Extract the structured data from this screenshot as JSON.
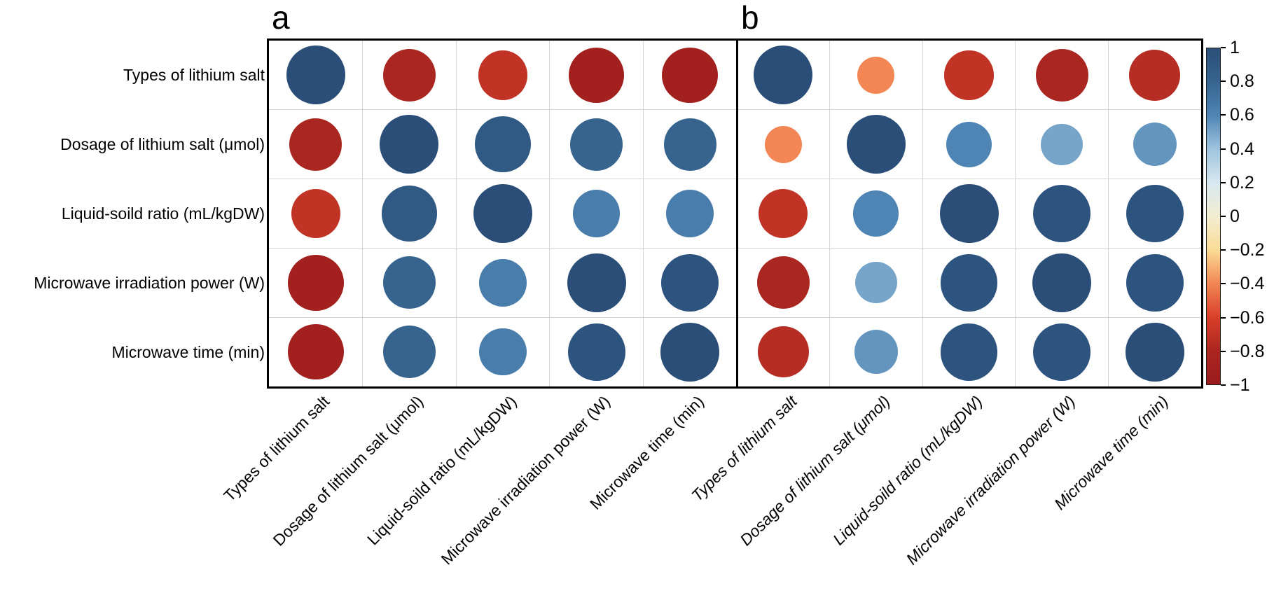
{
  "chart_data": {
    "type": "correlation_matrix_bubble",
    "title": "",
    "variables": [
      "Types of lithium salt",
      "Dosage of lithium salt (μmol)",
      "Liquid-soild ratio (mL/kgDW)",
      "Microwave irradiation power (W)",
      "Microwave time (min)"
    ],
    "panels": [
      {
        "label": "a",
        "matrix": [
          [
            1.0,
            -0.8,
            -0.7,
            -0.9,
            -0.9
          ],
          [
            -0.8,
            1.0,
            0.9,
            0.8,
            0.8
          ],
          [
            -0.7,
            0.9,
            1.0,
            0.65,
            0.65
          ],
          [
            -0.9,
            0.8,
            0.65,
            1.0,
            0.95
          ],
          [
            -0.9,
            0.8,
            0.65,
            0.95,
            1.0
          ]
        ]
      },
      {
        "label": "b",
        "matrix": [
          [
            1.0,
            -0.4,
            -0.7,
            -0.8,
            -0.75
          ],
          [
            -0.4,
            1.0,
            0.6,
            0.5,
            0.55
          ],
          [
            -0.7,
            0.6,
            1.0,
            0.95,
            0.95
          ],
          [
            -0.8,
            0.5,
            0.95,
            1.0,
            0.95
          ],
          [
            -0.75,
            0.55,
            0.95,
            0.95,
            1.0
          ]
        ]
      }
    ],
    "colorbar": {
      "position": "right",
      "range": [
        -1,
        1
      ],
      "ticks": [
        1,
        0.8,
        0.6,
        0.4,
        0.2,
        0,
        -0.2,
        -0.4,
        -0.6,
        -0.8,
        -1
      ],
      "tick_labels": [
        "1",
        "0.8",
        "0.6",
        "0.4",
        "0.2",
        "0",
        "−0.2",
        "−0.4",
        "−0.6",
        "−0.8",
        "−1"
      ]
    },
    "colormap_stops": [
      [
        -1.0,
        "#9A1B1E"
      ],
      [
        -0.8,
        "#AA2620"
      ],
      [
        -0.6,
        "#D8402A"
      ],
      [
        -0.4,
        "#F28654"
      ],
      [
        -0.2,
        "#FBDC96"
      ],
      [
        0.0,
        "#F2EDD2"
      ],
      [
        0.2,
        "#D8E8F0"
      ],
      [
        0.4,
        "#9FC4DE"
      ],
      [
        0.6,
        "#4F85B5"
      ],
      [
        0.8,
        "#36648F"
      ],
      [
        1.0,
        "#2A4E78"
      ]
    ],
    "size_encoding": "radius proportional to sqrt(|r|)",
    "grid": true,
    "background": "#ffffff"
  }
}
